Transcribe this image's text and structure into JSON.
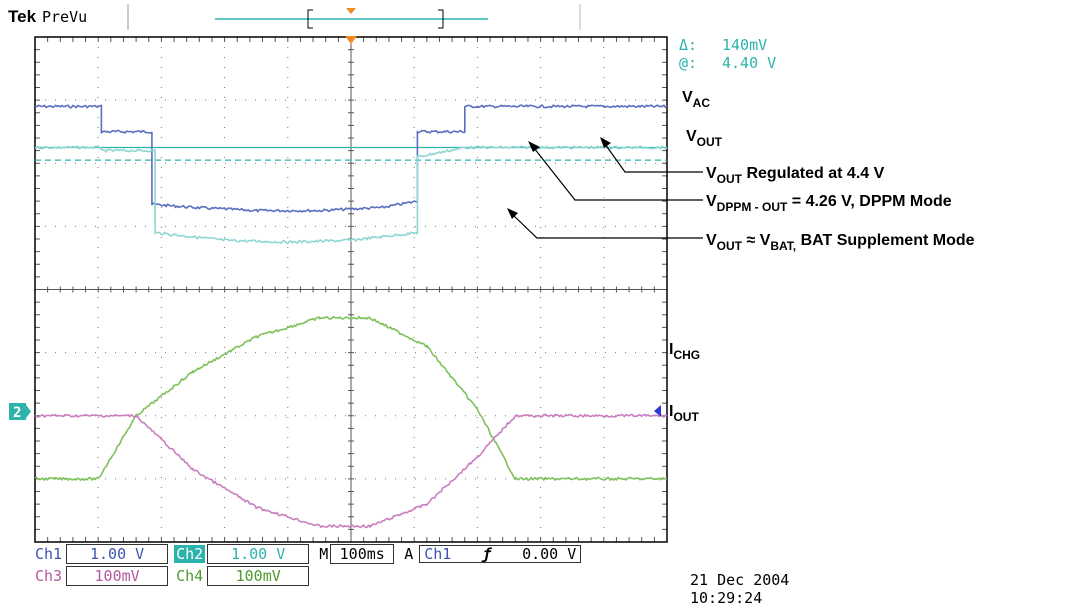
{
  "header": {
    "brand": "Tek",
    "mode": "PreVu"
  },
  "cursor_readout": {
    "delta_label": "Δ:",
    "delta_value": "140mV",
    "at_label": "@:",
    "at_value": "4.40 V"
  },
  "annotations": {
    "vac": {
      "main": "V",
      "sub": "AC"
    },
    "vout": {
      "main": "V",
      "sub": "OUT"
    },
    "vout_reg": {
      "p1": "V",
      "s1": "OUT",
      "p2": " Regulated at 4.4 V"
    },
    "vdppm": {
      "p1": "V",
      "s1": "DPPM -  OUT",
      "p2": " = 4.26 V,  DPPM Mode"
    },
    "vbat": {
      "p1": "V",
      "s1": "OUT",
      "p2": " ≈ V",
      "s2": "BAT,",
      "p3": " BAT Supplement Mode"
    },
    "ichg": {
      "main": "I",
      "sub": "CHG"
    },
    "iout": {
      "main": "I",
      "sub": "OUT"
    }
  },
  "channels": {
    "ch1": {
      "label": "Ch1",
      "scale": "1.00 V",
      "color": "#5b6fbf"
    },
    "ch2": {
      "label": "Ch2",
      "scale": "1.00 V",
      "color": "#2bb3ac"
    },
    "ch3": {
      "label": "Ch3",
      "scale": "100mV",
      "color": "#c97fbf"
    },
    "ch4": {
      "label": "Ch4",
      "scale": "100mV",
      "color": "#7cc15a"
    }
  },
  "timebase": {
    "prefix": "M",
    "value": "100ms"
  },
  "trigger": {
    "prefix": "A",
    "source": "Ch1",
    "slope": "ƒ",
    "level": "0.00 V"
  },
  "ground_marker": "2",
  "timestamp": {
    "date": "21 Dec  2004",
    "time": "10:29:24"
  },
  "chart_data": {
    "type": "line",
    "x_divisions": 10,
    "y_divisions": 8,
    "grid": true,
    "series": [
      {
        "name": "V_AC",
        "channel": "ch1",
        "color": "#5b6fbf",
        "points": [
          [
            0,
            6.9
          ],
          [
            1.05,
            6.9
          ],
          [
            1.05,
            6.5
          ],
          [
            1.85,
            6.5
          ],
          [
            1.85,
            5.35
          ],
          [
            2.5,
            5.3
          ],
          [
            3.5,
            5.25
          ],
          [
            4.5,
            5.25
          ],
          [
            5.5,
            5.3
          ],
          [
            6.05,
            5.4
          ],
          [
            6.05,
            6.5
          ],
          [
            6.8,
            6.5
          ],
          [
            6.8,
            6.9
          ],
          [
            10,
            6.9
          ]
        ]
      },
      {
        "name": "V_OUT",
        "channel": "ch2",
        "color": "#8fd6d3",
        "points": [
          [
            0,
            6.25
          ],
          [
            1.05,
            6.25
          ],
          [
            1.05,
            6.2
          ],
          [
            1.9,
            6.2
          ],
          [
            1.9,
            4.9
          ],
          [
            3,
            4.78
          ],
          [
            4,
            4.75
          ],
          [
            5,
            4.78
          ],
          [
            6.05,
            4.9
          ],
          [
            6.05,
            6.1
          ],
          [
            6.8,
            6.25
          ],
          [
            10,
            6.25
          ]
        ]
      },
      {
        "name": "I_OUT",
        "channel": "ch4",
        "color": "#7cc15a",
        "points": [
          [
            0,
            1.0
          ],
          [
            1,
            1.0
          ],
          [
            1.6,
            2.0
          ],
          [
            2.5,
            2.7
          ],
          [
            3.5,
            3.25
          ],
          [
            4.5,
            3.55
          ],
          [
            5.3,
            3.55
          ],
          [
            6.2,
            3.1
          ],
          [
            7.0,
            2.1
          ],
          [
            7.6,
            1.0
          ],
          [
            10,
            1.0
          ]
        ]
      },
      {
        "name": "I_CHG",
        "channel": "ch3",
        "color": "#c97fbf",
        "points": [
          [
            0,
            2.0
          ],
          [
            1.6,
            2.0
          ],
          [
            2.5,
            1.15
          ],
          [
            3.5,
            0.55
          ],
          [
            4.5,
            0.25
          ],
          [
            5.3,
            0.25
          ],
          [
            6.2,
            0.6
          ],
          [
            7.0,
            1.35
          ],
          [
            7.6,
            2.0
          ],
          [
            10,
            2.0
          ]
        ]
      }
    ],
    "cursors": [
      {
        "style": "solid",
        "y": 6.25
      },
      {
        "style": "dashed",
        "y": 6.05
      }
    ]
  }
}
